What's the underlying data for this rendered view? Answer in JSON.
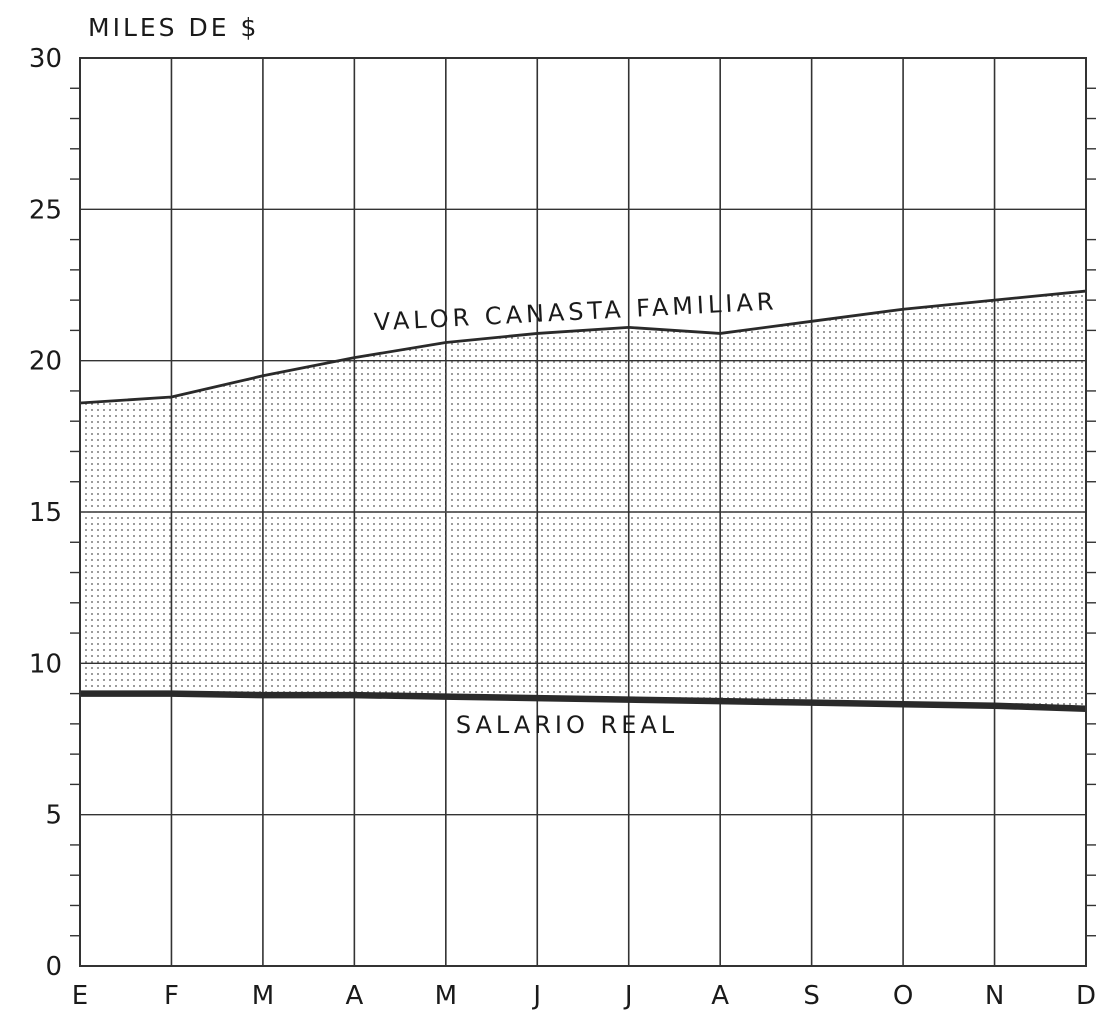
{
  "chart_data": {
    "type": "area",
    "title": "",
    "ylabel": "MILES DE $",
    "xlabel": "",
    "categories": [
      "E",
      "F",
      "M",
      "A",
      "M",
      "J",
      "J",
      "A",
      "S",
      "O",
      "N",
      "D"
    ],
    "ylim": [
      0,
      30
    ],
    "yticks": [
      "0",
      "5",
      "10",
      "15",
      "20",
      "25",
      "30"
    ],
    "grid": true,
    "fill": "dotted area between the two series",
    "series": [
      {
        "name": "VALOR CANASTA FAMILIAR",
        "values": [
          18.6,
          18.8,
          19.5,
          20.1,
          20.6,
          20.9,
          21.1,
          20.9,
          21.3,
          21.7,
          22.0,
          22.3
        ]
      },
      {
        "name": "SALARIO REAL",
        "values": [
          9.0,
          9.0,
          8.95,
          8.95,
          8.9,
          8.85,
          8.8,
          8.75,
          8.7,
          8.65,
          8.6,
          8.5
        ]
      }
    ],
    "colors": {
      "line": "#2a2a2a",
      "grid": "#333333",
      "dots": "#555555"
    }
  }
}
